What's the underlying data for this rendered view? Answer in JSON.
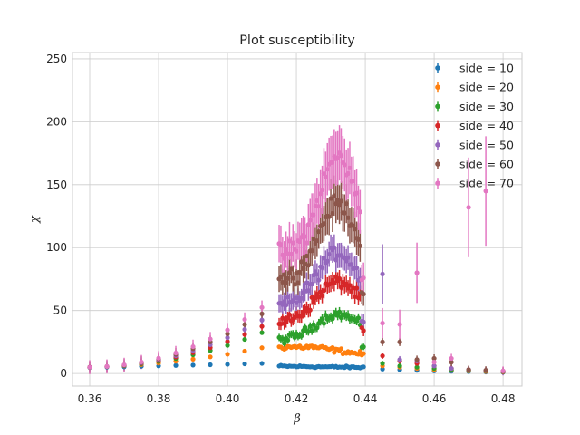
{
  "chart_data": {
    "type": "scatter",
    "title": "Plot susceptibility",
    "xlabel": "β",
    "ylabel": "χ",
    "xlim": [
      0.355,
      0.4855
    ],
    "ylim": [
      -10,
      255
    ],
    "xticks": [
      0.36,
      0.38,
      0.4,
      0.42,
      0.44,
      0.46,
      0.48
    ],
    "xtick_labels": [
      "0.36",
      "0.38",
      "0.40",
      "0.42",
      "0.44",
      "0.46",
      "0.48"
    ],
    "yticks": [
      0,
      50,
      100,
      150,
      200,
      250
    ],
    "ytick_labels": [
      "0",
      "50",
      "100",
      "150",
      "200",
      "250"
    ],
    "grid": true,
    "legend_position": "top-right",
    "error_bars": true,
    "series": [
      {
        "name": "side = 10",
        "color": "#1f77b4"
      },
      {
        "name": "side = 20",
        "color": "#ff7f0e"
      },
      {
        "name": "side = 30",
        "color": "#2ca02c"
      },
      {
        "name": "side = 40",
        "color": "#d62728"
      },
      {
        "name": "side = 50",
        "color": "#9467bd"
      },
      {
        "name": "side = 60",
        "color": "#8c564b"
      },
      {
        "name": "side = 70",
        "color": "#e377c2"
      }
    ],
    "coarse_beta": [
      0.36,
      0.365,
      0.37,
      0.375,
      0.38,
      0.385,
      0.39,
      0.395,
      0.4,
      0.405,
      0.41,
      0.445,
      0.45,
      0.455,
      0.46,
      0.465,
      0.47,
      0.475,
      0.48
    ],
    "fine_range": [
      0.415,
      0.4395
    ],
    "fine_step": 0.0005
  }
}
